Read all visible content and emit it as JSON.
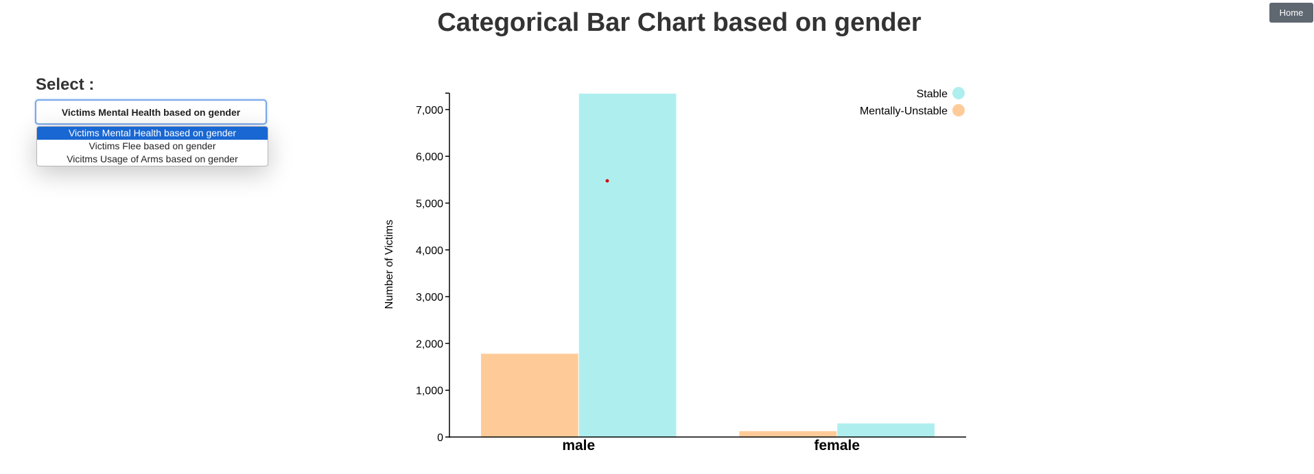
{
  "header": {
    "title": "Categorical Bar Chart based on gender",
    "home_label": "Home"
  },
  "select": {
    "label": "Select :",
    "selected_value": "Victims Mental Health based on gender",
    "options": [
      "Victims Mental Health based on gender",
      "Victims Flee based on gender",
      "Vicitms Usage of Arms based on gender"
    ]
  },
  "chart_data": {
    "type": "bar",
    "title": "",
    "xlabel": "",
    "ylabel": "Number of Victims",
    "categories": [
      "male",
      "female"
    ],
    "series": [
      {
        "name": "Mentally-Unstable",
        "color": "#fecb98",
        "values": [
          1780,
          125
        ]
      },
      {
        "name": "Stable",
        "color": "#afeeee",
        "values": [
          7340,
          290
        ]
      }
    ],
    "ylim": [
      0,
      7350
    ],
    "yticks": [
      0,
      1000,
      2000,
      3000,
      4000,
      5000,
      6000,
      7000
    ],
    "ytick_labels": [
      "0",
      "1,000",
      "2,000",
      "3,000",
      "4,000",
      "5,000",
      "6,000",
      "7,000"
    ],
    "legend": {
      "placement": "top-right",
      "entries": [
        {
          "label": "Stable",
          "color": "#afeeee"
        },
        {
          "label": "Mentally-Unstable",
          "color": "#fecb98"
        }
      ]
    },
    "grid": false
  }
}
